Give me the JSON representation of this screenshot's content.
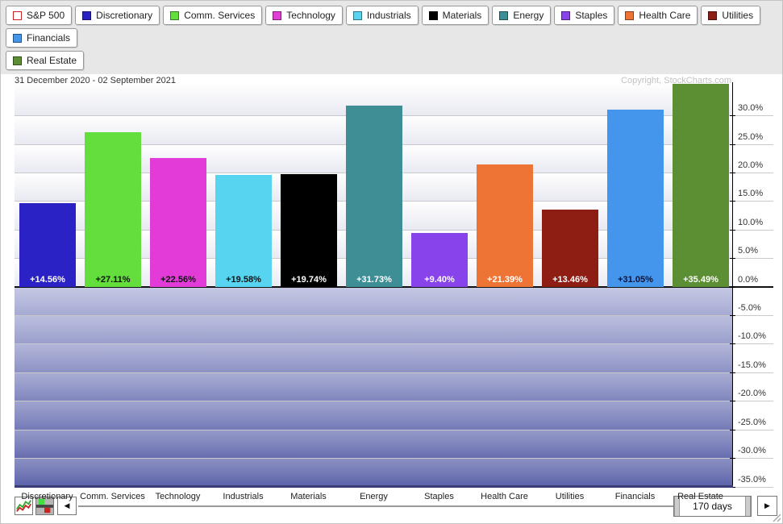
{
  "legend": {
    "items": [
      {
        "label": "S&P 500",
        "color": "#ffffff",
        "border": "#cc2222",
        "filled": false
      },
      {
        "label": "Discretionary",
        "color": "#2b22c5",
        "filled": true
      },
      {
        "label": "Comm. Services",
        "color": "#63de3c",
        "filled": true
      },
      {
        "label": "Technology",
        "color": "#e23bd8",
        "filled": true
      },
      {
        "label": "Industrials",
        "color": "#57d4ef",
        "filled": true
      },
      {
        "label": "Materials",
        "color": "#000000",
        "filled": true
      },
      {
        "label": "Energy",
        "color": "#3e8e96",
        "filled": true
      },
      {
        "label": "Staples",
        "color": "#8843eb",
        "filled": true
      },
      {
        "label": "Health Care",
        "color": "#ee7436",
        "filled": true
      },
      {
        "label": "Utilities",
        "color": "#8e1d14",
        "filled": true
      },
      {
        "label": "Financials",
        "color": "#4495ec",
        "filled": true
      },
      {
        "label": "Real Estate",
        "color": "#5c8f33",
        "filled": true
      }
    ],
    "break_after_index": 10
  },
  "chart_data": {
    "type": "bar",
    "title": "31 December 2020 - 02 September 2021",
    "copyright": "Copyright, StockCharts.com",
    "xlabel": "",
    "ylabel": "",
    "grid": true,
    "legend_position": "top",
    "categories": [
      "Discretionary",
      "Comm. Services",
      "Technology",
      "Industrials",
      "Materials",
      "Energy",
      "Staples",
      "Health Care",
      "Utilities",
      "Financials",
      "Real Estate"
    ],
    "values": [
      14.56,
      27.11,
      22.56,
      19.58,
      19.74,
      31.73,
      9.4,
      21.39,
      13.46,
      31.05,
      35.49
    ],
    "bar_labels": [
      "+14.56%",
      "+27.11%",
      "+22.56%",
      "+19.58%",
      "+19.74%",
      "+31.73%",
      "+9.40%",
      "+21.39%",
      "+13.46%",
      "+31.05%",
      "+35.49%"
    ],
    "bar_colors": [
      "#2b22c5",
      "#63de3c",
      "#e23bd8",
      "#57d4ef",
      "#000000",
      "#3e8e96",
      "#8843eb",
      "#ee7436",
      "#8e1d14",
      "#4495ec",
      "#5c8f33"
    ],
    "bar_label_colors": [
      "#ffffff",
      "#111111",
      "#111111",
      "#111111",
      "#ffffff",
      "#ffffff",
      "#ffffff",
      "#ffffff",
      "#ffffff",
      "#111133",
      "#ffffff"
    ],
    "ylim": [
      -35.2,
      35.8
    ],
    "ytick_interval": 5,
    "yticks": [
      {
        "v": 30,
        "label": "30.0%"
      },
      {
        "v": 25,
        "label": "25.0%"
      },
      {
        "v": 20,
        "label": "20.0%"
      },
      {
        "v": 15,
        "label": "15.0%"
      },
      {
        "v": 10,
        "label": "10.0%"
      },
      {
        "v": 5,
        "label": "5.0%"
      },
      {
        "v": 0,
        "label": "0.0%"
      },
      {
        "v": -5,
        "label": "-5.0%"
      },
      {
        "v": -10,
        "label": "-10.0%"
      },
      {
        "v": -15,
        "label": "-15.0%"
      },
      {
        "v": -20,
        "label": "-20.0%"
      },
      {
        "v": -25,
        "label": "-25.0%"
      },
      {
        "v": -30,
        "label": "-30.0%"
      },
      {
        "v": -35,
        "label": "-35.0%"
      }
    ]
  },
  "colors": {
    "grid": "#c9c9cd",
    "zero_line": "#111111",
    "axis": "#000000",
    "plot_bottom_border": "#3b3e76",
    "neg_gradient_top": "#b2b6da",
    "neg_gradient_bottom": "#5a61a8",
    "pos_band_top": "#ffffff",
    "pos_band_bottom": "#e9eaf2"
  },
  "toolbar": {
    "icons": [
      {
        "name": "line-chart-icon"
      },
      {
        "name": "bar-chart-icon"
      }
    ],
    "left_arrow": "◀",
    "right_arrow": "▶",
    "range_label": "170 days"
  }
}
